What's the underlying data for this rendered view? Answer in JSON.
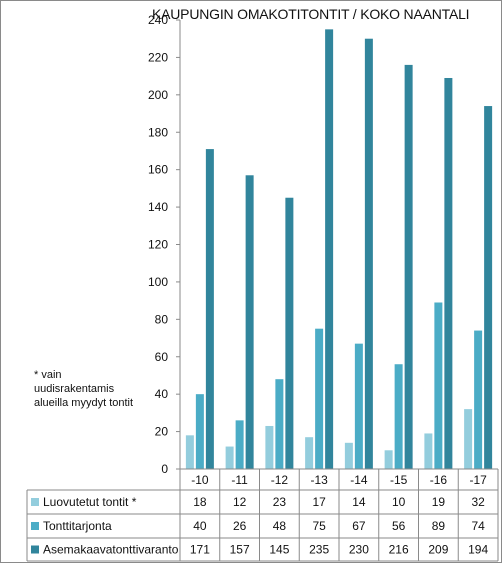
{
  "title": "KAUPUNGIN OMAKOTITONTIT / KOKO NAANTALI",
  "note": "* vain uudisrakentamis alueilla myydyt tontit",
  "chart_data": {
    "type": "bar",
    "title": "KAUPUNGIN OMAKOTITONTIT / KOKO NAANTALI",
    "categories": [
      "-10",
      "-11",
      "-12",
      "-13",
      "-14",
      "-15",
      "-16",
      "-17"
    ],
    "series": [
      {
        "name": "Luovutetut tontit  *",
        "color": "#93cddd",
        "values": [
          18,
          12,
          23,
          17,
          14,
          10,
          19,
          32
        ]
      },
      {
        "name": "Tonttitarjonta",
        "color": "#4bacc6",
        "values": [
          40,
          26,
          48,
          75,
          67,
          56,
          89,
          74
        ]
      },
      {
        "name": "Asemakaavatonttivaranto",
        "color": "#31859c",
        "values": [
          171,
          157,
          145,
          235,
          230,
          216,
          209,
          194
        ]
      }
    ],
    "yticks": [
      0,
      20,
      40,
      60,
      80,
      100,
      120,
      140,
      160,
      180,
      200,
      220,
      240
    ],
    "ylim": [
      0,
      240
    ],
    "grid": false,
    "legend": "data table below chart"
  }
}
